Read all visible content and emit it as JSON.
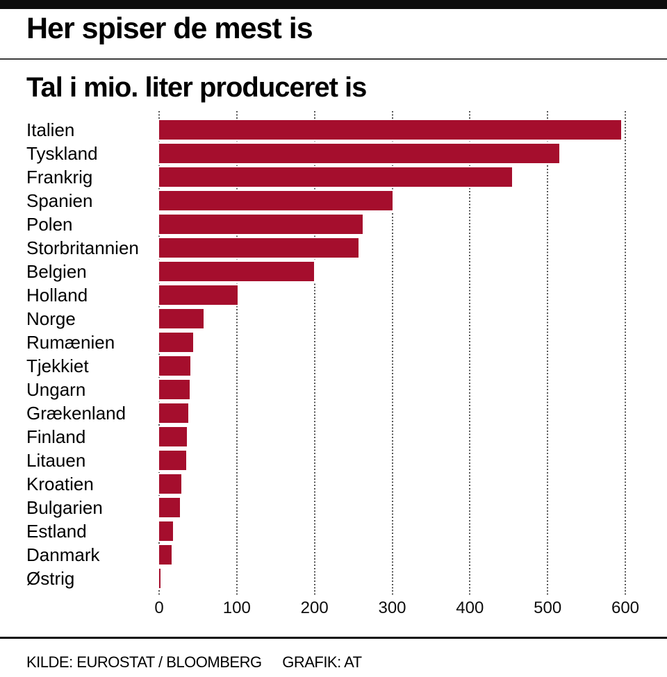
{
  "header": {
    "title": "Her spiser de mest is"
  },
  "chart_data": {
    "type": "bar",
    "orientation": "horizontal",
    "title": "Tal i mio. liter produceret is",
    "categories": [
      "Italien",
      "Tyskland",
      "Frankrig",
      "Spanien",
      "Polen",
      "Storbritannien",
      "Belgien",
      "Holland",
      "Norge",
      "Rumænien",
      "Tjekkiet",
      "Ungarn",
      "Grækenland",
      "Finland",
      "Litauen",
      "Kroatien",
      "Bulgarien",
      "Estland",
      "Danmark",
      "Østrig"
    ],
    "values": [
      595,
      515,
      454,
      300,
      262,
      257,
      199,
      101,
      57,
      44,
      40,
      39,
      38,
      36,
      35,
      29,
      27,
      18,
      16,
      2
    ],
    "xlabel": "",
    "ylabel": "",
    "xlim": [
      0,
      600
    ],
    "x_ticks": [
      0,
      100,
      200,
      300,
      400,
      500,
      600
    ],
    "grid": "dotted-vertical",
    "legend": "none",
    "bar_color": "#a50e2d",
    "gridline_color": "#555555"
  },
  "footer": {
    "source": "KILDE: EUROSTAT / BLOOMBERG",
    "credit": "GRAFIK: AT"
  }
}
